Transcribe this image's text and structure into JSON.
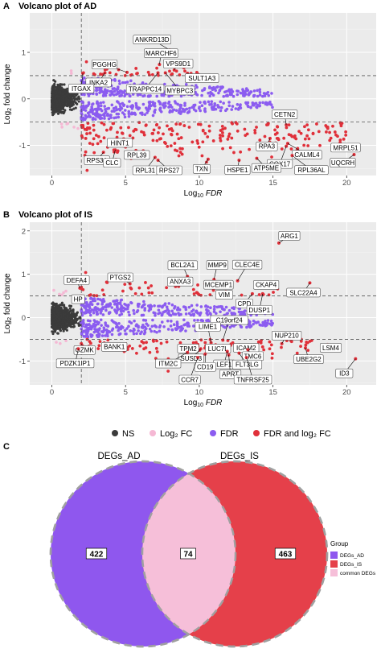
{
  "panel_a": {
    "letter": "A",
    "title": "Volcano plot of AD"
  },
  "panel_b": {
    "letter": "B",
    "title": "Volcano plot of IS"
  },
  "panel_c": {
    "letter": "C"
  },
  "legend": {
    "items": [
      {
        "label": "NS",
        "color": "#3b3b3b"
      },
      {
        "label": "Log₂ FC",
        "color": "#f5b8d4"
      },
      {
        "label": "FDR",
        "color": "#8b5cf0"
      },
      {
        "label": "FDR and log₂ FC",
        "color": "#e0303a"
      }
    ]
  },
  "chart_data": [
    {
      "type": "scatter",
      "title": "Volcano plot of AD",
      "xlabel": "Log10 FDR",
      "ylabel": "Log2 fold change",
      "xlim": [
        -1.5,
        22
      ],
      "ylim": [
        -1.65,
        1.85
      ],
      "x_ticks": [
        0,
        5,
        10,
        15,
        20
      ],
      "y_ticks": [
        -1,
        0,
        1,
        2
      ],
      "thresholds": {
        "x": 2,
        "y": [
          0.5,
          -0.5
        ]
      },
      "labels": [
        {
          "name": "ANKRD13D",
          "x": 8.0,
          "y": 1.05
        },
        {
          "name": "MARCHF6",
          "x": 7.3,
          "y": 0.74
        },
        {
          "name": "PGGHG",
          "x": 5.1,
          "y": 0.57
        },
        {
          "name": "VPS9D1",
          "x": 8.3,
          "y": 0.62
        },
        {
          "name": "INKA2",
          "x": 3.6,
          "y": 0.56
        },
        {
          "name": "SULT1A3",
          "x": 9.2,
          "y": 0.55
        },
        {
          "name": "TRAPPC14",
          "x": 7.2,
          "y": 0.56
        },
        {
          "name": "MYBPC3",
          "x": 7.7,
          "y": 0.56
        },
        {
          "name": "ITGAX",
          "x": 2.1,
          "y": 0.55
        },
        {
          "name": "CETN2",
          "x": 15.9,
          "y": -0.56
        },
        {
          "name": "RPA3",
          "x": 14.8,
          "y": -0.85
        },
        {
          "name": "CALML4",
          "x": 16.0,
          "y": -0.96
        },
        {
          "name": "COX17",
          "x": 15.9,
          "y": -1.02
        },
        {
          "name": "MRPL51",
          "x": 20.8,
          "y": -1.05
        },
        {
          "name": "HINT1",
          "x": 4.5,
          "y": -1.0
        },
        {
          "name": "RPS3A",
          "x": 3.5,
          "y": -1.15
        },
        {
          "name": "CLC",
          "x": 4.3,
          "y": -1.1
        },
        {
          "name": "RPL39",
          "x": 6.2,
          "y": -1.12
        },
        {
          "name": "UQCRH",
          "x": 20.5,
          "y": -1.2
        },
        {
          "name": "RPL31",
          "x": 7.0,
          "y": -1.26
        },
        {
          "name": "RPS27",
          "x": 7.2,
          "y": -1.32
        },
        {
          "name": "TXN",
          "x": 10.6,
          "y": -1.3
        },
        {
          "name": "HSPE1",
          "x": 12.7,
          "y": -1.32
        },
        {
          "name": "ATP5ME",
          "x": 13.9,
          "y": -1.28
        },
        {
          "name": "RPL36AL",
          "x": 16.3,
          "y": -1.22
        }
      ]
    },
    {
      "type": "scatter",
      "title": "Volcano plot of IS",
      "xlabel": "Log10 FDR",
      "ylabel": "Log2 fold change",
      "xlim": [
        -1.5,
        22
      ],
      "ylim": [
        -1.55,
        2.2
      ],
      "x_ticks": [
        0,
        5,
        10,
        15,
        20
      ],
      "y_ticks": [
        -1,
        0,
        1,
        2
      ],
      "thresholds": {
        "x": 2,
        "y": [
          0.5,
          -0.5
        ]
      },
      "labels": [
        {
          "name": "ARG1",
          "x": 15.4,
          "y": 1.72
        },
        {
          "name": "BCL2A1",
          "x": 9.2,
          "y": 0.95
        },
        {
          "name": "MMP9",
          "x": 11.0,
          "y": 0.88
        },
        {
          "name": "CLEC4E",
          "x": 12.6,
          "y": 0.85
        },
        {
          "name": "PTGS2",
          "x": 5.3,
          "y": 0.78
        },
        {
          "name": "ANXA3",
          "x": 8.6,
          "y": 0.72
        },
        {
          "name": "MCEMP1",
          "x": 11.2,
          "y": 0.72
        },
        {
          "name": "CKAP4",
          "x": 14.1,
          "y": 0.7
        },
        {
          "name": "DEFA4",
          "x": 1.9,
          "y": 0.68
        },
        {
          "name": "VIM",
          "x": 11.8,
          "y": 0.6
        },
        {
          "name": "SLC22A4",
          "x": 17.5,
          "y": 0.8
        },
        {
          "name": "CPD",
          "x": 13.6,
          "y": 0.55
        },
        {
          "name": "DUSP1",
          "x": 14.3,
          "y": 0.55
        },
        {
          "name": "HP",
          "x": 2.0,
          "y": 0.5
        },
        {
          "name": "C19orf24",
          "x": 11.6,
          "y": -0.52
        },
        {
          "name": "LIME1",
          "x": 10.8,
          "y": -0.58
        },
        {
          "name": "GZMK",
          "x": 2.0,
          "y": -0.6
        },
        {
          "name": "BANK1",
          "x": 5.0,
          "y": -0.6
        },
        {
          "name": "NUP210",
          "x": 15.6,
          "y": -0.6
        },
        {
          "name": "LSM4",
          "x": 18.7,
          "y": -0.62
        },
        {
          "name": "TPM2",
          "x": 9.9,
          "y": -0.62
        },
        {
          "name": "LUC7L",
          "x": 11.6,
          "y": -0.64
        },
        {
          "name": "ICAM2",
          "x": 13.4,
          "y": -0.66
        },
        {
          "name": "SUSD3",
          "x": 10.1,
          "y": -0.72
        },
        {
          "name": "TMC6",
          "x": 13.3,
          "y": -0.74
        },
        {
          "name": "UBE2G2",
          "x": 17.2,
          "y": -0.7
        },
        {
          "name": "PDZK1IP1",
          "x": 1.8,
          "y": -0.72
        },
        {
          "name": "LEF1",
          "x": 11.9,
          "y": -0.78
        },
        {
          "name": "ITM2C",
          "x": 9.2,
          "y": -0.8
        },
        {
          "name": "CD19",
          "x": 10.4,
          "y": -0.84
        },
        {
          "name": "FLT3LG",
          "x": 12.7,
          "y": -0.82
        },
        {
          "name": "APRT",
          "x": 12.0,
          "y": -0.86
        },
        {
          "name": "CCR7",
          "x": 9.9,
          "y": -0.92
        },
        {
          "name": "TNFRSF25",
          "x": 13.2,
          "y": -0.92
        },
        {
          "name": "ID3",
          "x": 20.6,
          "y": -0.95
        }
      ]
    },
    {
      "type": "venn",
      "sets": [
        {
          "name": "DEGs_AD",
          "only": 422,
          "color": "#8f57ee"
        },
        {
          "name": "DEGs_IS",
          "only": 463,
          "color": "#e5404a"
        }
      ],
      "intersection": {
        "value": 74,
        "color": "#f6bfd9"
      },
      "legend_title": "Group",
      "legend": [
        {
          "label": "DEGs_AD",
          "color": "#8f57ee"
        },
        {
          "label": "DEGs_IS",
          "color": "#e5404a"
        },
        {
          "label": "common DEGs",
          "color": "#f6bfd9"
        }
      ]
    }
  ]
}
